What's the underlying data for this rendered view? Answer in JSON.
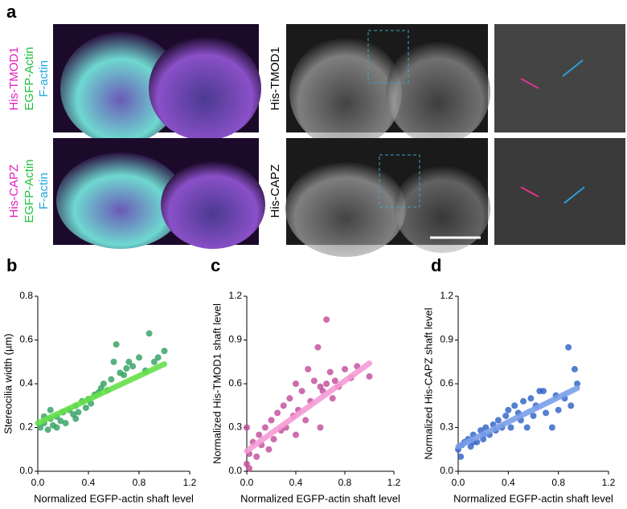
{
  "panel_a": {
    "label": "a",
    "top_labels": [
      "His-TMOD1",
      "EGFP-Actin",
      "F-actin"
    ],
    "bottom_labels": [
      "His-CAPZ",
      "EGFP-Actin",
      "F-actin"
    ],
    "gray_labels": [
      "His-TMOD1",
      "His-CAPZ"
    ]
  },
  "chart_data": [
    {
      "type": "scatter",
      "panel": "b",
      "xlabel": "Normalized EGFP-actin shaft level",
      "ylabel": "Stereocilia width (µm)",
      "color": "#2e9e5e",
      "fit_color": "#66e04a",
      "xlim": [
        0,
        1.2
      ],
      "xticks": [
        {
          "value": 0,
          "label": "0.0"
        },
        0.4,
        0.8,
        1.2
      ],
      "ylim": [
        0,
        0.8
      ],
      "yticks": [
        {
          "value": 0,
          "label": "0.0"
        },
        0.2,
        0.4,
        0.6,
        0.8
      ],
      "x": [
        0.02,
        0.05,
        0.08,
        0.1,
        0.12,
        0.15,
        0.18,
        0.2,
        0.22,
        0.25,
        0.28,
        0.3,
        0.32,
        0.35,
        0.38,
        0.4,
        0.42,
        0.45,
        0.48,
        0.5,
        0.52,
        0.55,
        0.58,
        0.6,
        0.62,
        0.65,
        0.68,
        0.7,
        0.72,
        0.75,
        0.8,
        0.85,
        0.88,
        0.92,
        0.95,
        1.0,
        0.05,
        0.1,
        0.15,
        0.3
      ],
      "values": [
        0.2,
        0.22,
        0.19,
        0.24,
        0.21,
        0.25,
        0.23,
        0.27,
        0.22,
        0.28,
        0.26,
        0.3,
        0.27,
        0.32,
        0.29,
        0.33,
        0.31,
        0.35,
        0.36,
        0.38,
        0.4,
        0.37,
        0.42,
        0.5,
        0.58,
        0.45,
        0.44,
        0.47,
        0.5,
        0.48,
        0.52,
        0.46,
        0.63,
        0.5,
        0.52,
        0.55,
        0.25,
        0.28,
        0.2,
        0.24
      ],
      "fit": {
        "x": [
          0,
          1.0
        ],
        "values": [
          0.22,
          0.49
        ]
      }
    },
    {
      "type": "scatter",
      "panel": "c",
      "xlabel": "Normalized EGFP-actin shaft level",
      "ylabel": "Normalized His-TMOD1 shaft level",
      "color": "#c0489a",
      "fit_color": "#f59ad5",
      "xlim": [
        0,
        1.2
      ],
      "xticks": [
        {
          "value": 0,
          "label": "0.0"
        },
        0.4,
        0.8,
        1.2
      ],
      "ylim": [
        0,
        1.2
      ],
      "yticks": [
        {
          "value": 0,
          "label": "0.0"
        },
        0.3,
        0.6,
        0.9,
        1.2
      ],
      "x": [
        0.0,
        0.02,
        0.05,
        0.08,
        0.1,
        0.12,
        0.15,
        0.18,
        0.2,
        0.22,
        0.25,
        0.28,
        0.3,
        0.32,
        0.35,
        0.38,
        0.4,
        0.42,
        0.45,
        0.48,
        0.5,
        0.52,
        0.55,
        0.58,
        0.6,
        0.62,
        0.65,
        0.68,
        0.7,
        0.72,
        0.75,
        0.8,
        0.85,
        0.6,
        0.9,
        1.0,
        0.0,
        0.02,
        0.4,
        0.65
      ],
      "values": [
        0.05,
        0.12,
        0.2,
        0.1,
        0.25,
        0.18,
        0.3,
        0.15,
        0.35,
        0.22,
        0.4,
        0.28,
        0.45,
        0.3,
        0.5,
        0.38,
        0.6,
        0.42,
        0.55,
        0.35,
        0.7,
        0.48,
        0.62,
        0.85,
        0.58,
        0.55,
        0.6,
        0.68,
        0.5,
        0.62,
        0.58,
        0.7,
        0.64,
        0.3,
        0.72,
        0.65,
        0.3,
        0.02,
        0.25,
        1.04
      ],
      "fit": {
        "x": [
          0,
          1.0
        ],
        "values": [
          0.14,
          0.74
        ]
      }
    },
    {
      "type": "scatter",
      "panel": "d",
      "xlabel": "Normalized EGFP-actin shaft level",
      "ylabel": "Normalized His-CAPZ shaft level",
      "color": "#2a5fc4",
      "fit_color": "#7a9ee8",
      "xlim": [
        0,
        1.2
      ],
      "xticks": [
        {
          "value": 0,
          "label": "0.0"
        },
        0.4,
        0.8,
        1.2
      ],
      "ylim": [
        0,
        1.2
      ],
      "yticks": [
        {
          "value": 0,
          "label": "0.0"
        },
        0.3,
        0.6,
        0.9,
        1.2
      ],
      "x": [
        0.0,
        0.03,
        0.05,
        0.08,
        0.1,
        0.12,
        0.15,
        0.18,
        0.2,
        0.22,
        0.25,
        0.28,
        0.3,
        0.32,
        0.35,
        0.38,
        0.4,
        0.42,
        0.45,
        0.48,
        0.5,
        0.52,
        0.55,
        0.58,
        0.6,
        0.62,
        0.65,
        0.7,
        0.75,
        0.78,
        0.8,
        0.85,
        0.88,
        0.9,
        0.93,
        0.95,
        0.02,
        0.12,
        0.2,
        0.68
      ],
      "values": [
        0.15,
        0.18,
        0.2,
        0.22,
        0.17,
        0.25,
        0.2,
        0.28,
        0.22,
        0.3,
        0.25,
        0.32,
        0.28,
        0.35,
        0.3,
        0.38,
        0.42,
        0.3,
        0.45,
        0.4,
        0.35,
        0.48,
        0.3,
        0.5,
        0.38,
        0.45,
        0.55,
        0.4,
        0.3,
        0.52,
        0.42,
        0.5,
        0.85,
        0.45,
        0.7,
        0.6,
        0.1,
        0.2,
        0.25,
        0.55
      ],
      "fit": {
        "x": [
          0,
          0.95
        ],
        "values": [
          0.17,
          0.57
        ]
      }
    }
  ]
}
